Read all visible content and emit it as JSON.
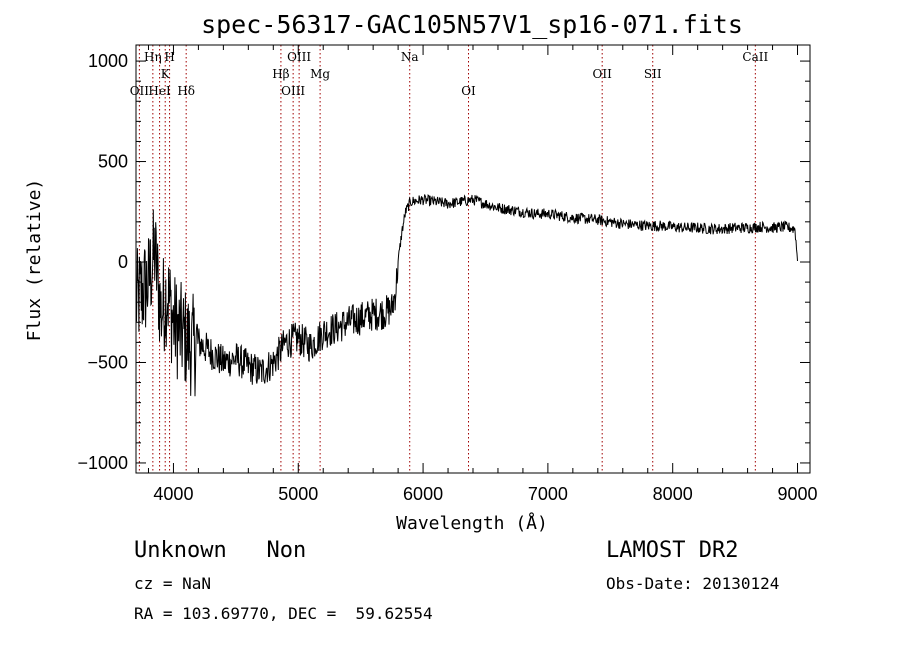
{
  "chart_data": {
    "type": "line",
    "title": "spec-56317-GAC105N57V1_sp16-071.fits",
    "xlabel": "Wavelength (Å)",
    "ylabel": "Flux (relative)",
    "xlim": [
      3700,
      9100
    ],
    "ylim": [
      -1050,
      1080
    ],
    "x_ticks": [
      4000,
      5000,
      6000,
      7000,
      8000,
      9000
    ],
    "y_ticks": [
      -1000,
      -500,
      0,
      500,
      1000
    ],
    "x_tick_labels": [
      "4000",
      "5000",
      "6000",
      "7000",
      "8000",
      "9000"
    ],
    "y_tick_labels": [
      "−1000",
      "−500",
      "0",
      "500",
      "1000"
    ],
    "grid": false,
    "series": [
      {
        "color": "#000000",
        "x": [
          3700,
          3750,
          3800,
          3850,
          3900,
          3950,
          4000,
          4050,
          4100,
          4150,
          4200,
          4300,
          4400,
          4500,
          4600,
          4700,
          4800,
          4900,
          5000,
          5100,
          5200,
          5300,
          5400,
          5500,
          5600,
          5700,
          5750,
          5780,
          5800,
          5830,
          5860,
          5900,
          6000,
          6100,
          6200,
          6300,
          6400,
          6500,
          6600,
          6700,
          6800,
          6900,
          7000,
          7100,
          7200,
          7300,
          7400,
          7500,
          7600,
          7700,
          7800,
          7900,
          8000,
          8100,
          8200,
          8300,
          8400,
          8500,
          8600,
          8700,
          8800,
          8900,
          8980,
          9000
        ],
        "y": [
          -200,
          -150,
          -100,
          50,
          -250,
          -150,
          -300,
          -350,
          -380,
          -420,
          -400,
          -450,
          -500,
          -480,
          -520,
          -550,
          -500,
          -400,
          -380,
          -420,
          -350,
          -330,
          -300,
          -280,
          -260,
          -250,
          -230,
          -150,
          0,
          150,
          250,
          300,
          310,
          300,
          290,
          300,
          310,
          290,
          270,
          260,
          250,
          240,
          240,
          230,
          220,
          215,
          210,
          200,
          190,
          185,
          180,
          180,
          175,
          170,
          170,
          165,
          165,
          170,
          170,
          175,
          170,
          175,
          165,
          5
        ]
      }
    ],
    "lines": [
      {
        "label": "OII",
        "x": 3727,
        "row": 3
      },
      {
        "label": "Hη",
        "x": 3835,
        "row": 1
      },
      {
        "label": "HeI",
        "x": 3889,
        "row": 3
      },
      {
        "label": "K",
        "x": 3934,
        "row": 2
      },
      {
        "label": "H",
        "x": 3969,
        "row": 1
      },
      {
        "label": "Hδ",
        "x": 4102,
        "row": 3
      },
      {
        "label": "Hβ",
        "x": 4861,
        "row": 2
      },
      {
        "label": "OIII",
        "x": 4959,
        "row": 3
      },
      {
        "label": "OIII",
        "x": 5007,
        "row": 1
      },
      {
        "label": "Mg",
        "x": 5175,
        "row": 2
      },
      {
        "label": "Na",
        "x": 5893,
        "row": 1
      },
      {
        "label": "OI",
        "x": 6364,
        "row": 3
      },
      {
        "label": "OII",
        "x": 7435,
        "row": 2
      },
      {
        "label": "SII",
        "x": 7840,
        "row": 2
      },
      {
        "label": "CaII",
        "x": 8662,
        "row": 1
      }
    ]
  },
  "info": {
    "class_text": "Unknown   Non",
    "cz_text": "cz = NaN",
    "radec_text": "RA = 103.69770, DEC =  59.62554",
    "survey_text": "LAMOST DR2",
    "obsdate_text": "Obs-Date: 20130124"
  }
}
